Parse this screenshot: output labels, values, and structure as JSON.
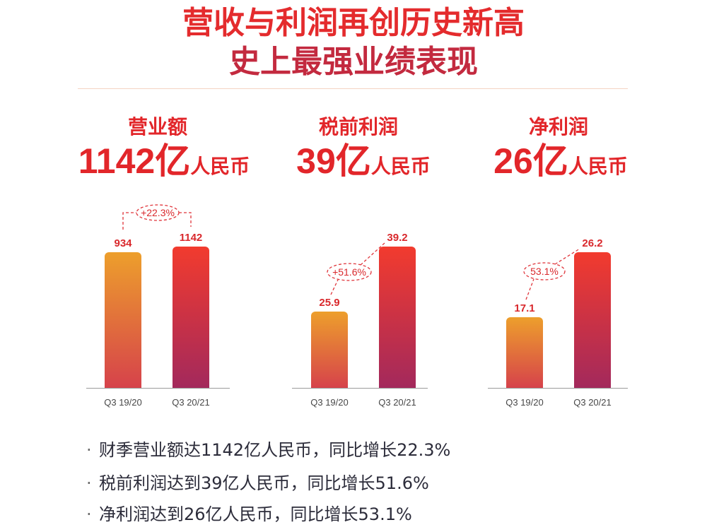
{
  "title": {
    "line1": "营收与利润再创历史新高",
    "line2": "史上最强业绩表现"
  },
  "chart_data": [
    {
      "type": "bar",
      "title": "营业额",
      "headline_value": "1142亿",
      "headline_unit": "人民币",
      "categories": [
        "Q3 19/20",
        "Q3 20/21"
      ],
      "values": [
        934,
        1142
      ],
      "growth_label": "+22.3%",
      "grid": false
    },
    {
      "type": "bar",
      "title": "税前利润",
      "headline_value": "39亿",
      "headline_unit": "人民币",
      "categories": [
        "Q3 19/20",
        "Q3 20/21"
      ],
      "values": [
        25.9,
        39.2
      ],
      "growth_label": "+51.6%",
      "grid": false
    },
    {
      "type": "bar",
      "title": "净利润",
      "headline_value": "26亿",
      "headline_unit": "人民币",
      "categories": [
        "Q3 19/20",
        "Q3 20/21"
      ],
      "values": [
        17.1,
        26.2
      ],
      "growth_label": "53.1%",
      "grid": false
    }
  ],
  "bullet_symbol": "·",
  "highlights": [
    "财季营业额达1142亿人民币，同比增长22.3%",
    "税前利润达到39亿人民币，同比增长51.6%",
    "净利润达到26亿人民币，同比增长53.1%"
  ],
  "colors": {
    "title_primary": "#e42b2d",
    "title_secondary": "#c32a3f",
    "accent": "#e2262a",
    "value_label": "#d9282c",
    "connector": "#e0353b",
    "divider": "#f5d3c2",
    "text": "#2c2c3a",
    "bar_previous": [
      "#ed9f2c",
      "#d6424b"
    ],
    "bar_current": [
      "#f23b2e",
      "#a3295c"
    ]
  }
}
